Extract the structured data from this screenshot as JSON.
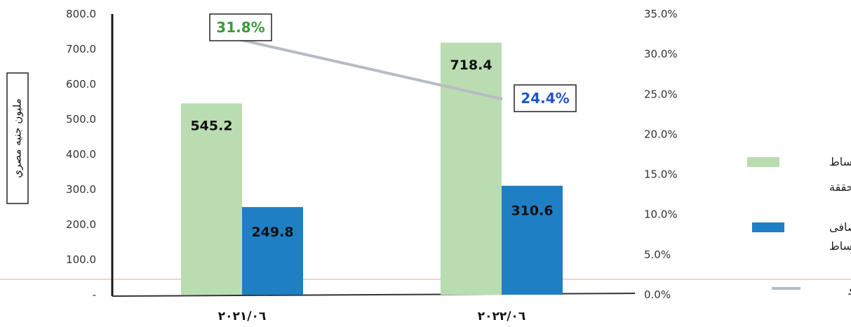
{
  "chart_data": {
    "type": "bar",
    "categories": [
      "٢٠٢١/٠٦",
      "٢٠٢٢/٠٦"
    ],
    "series": [
      {
        "name": "الاقساط المحققة",
        "values": [
          545.2,
          718.4
        ],
        "color": "#b9ddb0"
      },
      {
        "name": "صافى الاقساط",
        "values": [
          249.8,
          310.6
        ],
        "color": "#1f7fc4"
      }
    ],
    "line_series": {
      "name": "معدل النمو",
      "values": [
        31.8,
        24.4
      ],
      "labels": [
        "31.8%",
        "24.4%"
      ],
      "label_colors": [
        "#3a9a3a",
        "#1f55c8"
      ],
      "color": "#b6bcc6"
    },
    "data_labels": [
      [
        "545.2",
        "718.4"
      ],
      [
        "249.8",
        "310.6"
      ]
    ],
    "ylabel": "مليون جنيه مصري",
    "ylim": [
      0,
      800
    ],
    "yticks": [
      "-",
      "100.0",
      "200.0",
      "300.0",
      "400.0",
      "500.0",
      "600.0",
      "700.0",
      "800.0"
    ],
    "y2lim": [
      0,
      35
    ],
    "y2ticks": [
      "0.0%",
      "5.0%",
      "10.0%",
      "15.0%",
      "20.0%",
      "25.0%",
      "30.0%",
      "35.0%"
    ],
    "legend_position": "right",
    "grid": false
  }
}
